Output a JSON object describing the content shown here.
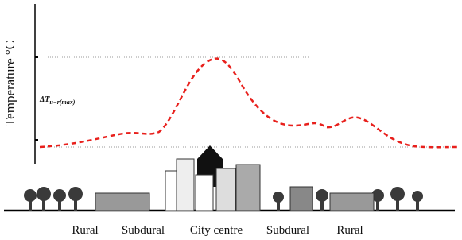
{
  "y_axis_label": "Temperature °C",
  "annotation": {
    "main": "ΔT",
    "subscript": "u−r(max)"
  },
  "zones": [
    "Rural",
    "Subdural",
    "City centre",
    "Subdural",
    "Rural"
  ]
}
